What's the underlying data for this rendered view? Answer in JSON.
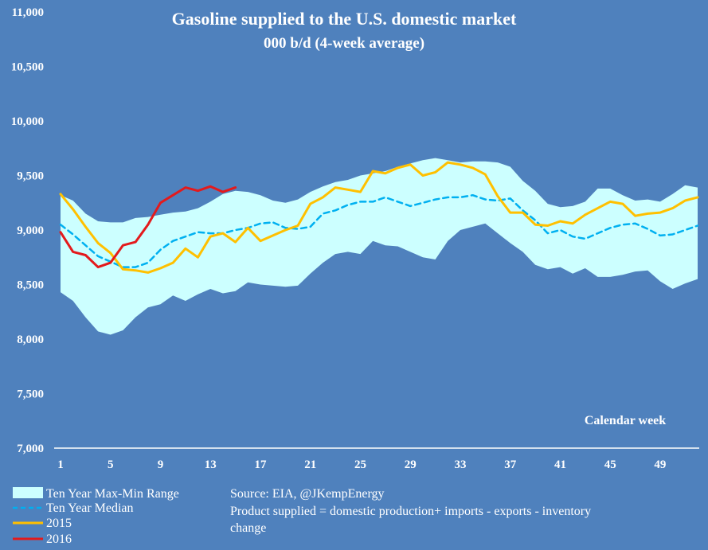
{
  "chart_data": {
    "type": "line",
    "title": "Gasoline supplied to the U.S. domestic market",
    "subtitle": "000 b/d (4-week average)",
    "xlabel": "Calendar week",
    "ylabel": "",
    "ylim": [
      7000,
      11000
    ],
    "xlim": [
      1,
      52
    ],
    "grid": false,
    "y_ticks": [
      "7,000",
      "7,500",
      "8,000",
      "8,500",
      "9,000",
      "9,500",
      "10,000",
      "10,500",
      "11,000"
    ],
    "y_tick_values": [
      7000,
      7500,
      8000,
      8500,
      9000,
      9500,
      10000,
      10500,
      11000
    ],
    "x_ticks": [
      "1",
      "5",
      "9",
      "13",
      "17",
      "21",
      "25",
      "29",
      "33",
      "37",
      "41",
      "45",
      "49"
    ],
    "x_tick_values": [
      1,
      5,
      9,
      13,
      17,
      21,
      25,
      29,
      33,
      37,
      41,
      45,
      49
    ],
    "legend_position": "bottom-left",
    "weeks": [
      1,
      2,
      3,
      4,
      5,
      6,
      7,
      8,
      9,
      10,
      11,
      12,
      13,
      14,
      15,
      16,
      17,
      18,
      19,
      20,
      21,
      22,
      23,
      24,
      25,
      26,
      27,
      28,
      29,
      30,
      31,
      32,
      33,
      34,
      35,
      36,
      37,
      38,
      39,
      40,
      41,
      42,
      43,
      44,
      45,
      46,
      47,
      48,
      49,
      50,
      51,
      52
    ],
    "range_max": [
      9320,
      9270,
      9150,
      9080,
      9070,
      9070,
      9110,
      9120,
      9140,
      9160,
      9170,
      9200,
      9260,
      9330,
      9360,
      9350,
      9320,
      9270,
      9250,
      9280,
      9350,
      9400,
      9440,
      9460,
      9500,
      9520,
      9540,
      9580,
      9610,
      9640,
      9660,
      9640,
      9620,
      9630,
      9630,
      9620,
      9580,
      9450,
      9360,
      9240,
      9210,
      9220,
      9260,
      9380,
      9380,
      9320,
      9270,
      9280,
      9260,
      9330,
      9410,
      9390
    ],
    "range_min": [
      8430,
      8350,
      8200,
      8070,
      8040,
      8080,
      8200,
      8290,
      8320,
      8400,
      8350,
      8410,
      8460,
      8420,
      8440,
      8520,
      8500,
      8490,
      8480,
      8490,
      8600,
      8700,
      8780,
      8800,
      8780,
      8900,
      8860,
      8850,
      8800,
      8750,
      8730,
      8900,
      9000,
      9030,
      9060,
      8970,
      8880,
      8800,
      8680,
      8640,
      8660,
      8600,
      8650,
      8570,
      8570,
      8590,
      8620,
      8630,
      8530,
      8460,
      8510,
      8550
    ],
    "series": [
      {
        "name": "Ten Year Median",
        "color": "#00b0f0",
        "style": "dashed",
        "values": [
          9050,
          8960,
          8860,
          8760,
          8710,
          8660,
          8660,
          8700,
          8820,
          8900,
          8940,
          8980,
          8970,
          8970,
          9000,
          9020,
          9060,
          9070,
          9020,
          9010,
          9030,
          9150,
          9180,
          9230,
          9260,
          9260,
          9300,
          9260,
          9220,
          9250,
          9280,
          9300,
          9300,
          9320,
          9280,
          9270,
          9290,
          9180,
          9090,
          8970,
          9000,
          8940,
          8920,
          8970,
          9020,
          9050,
          9060,
          9010,
          8950,
          8960,
          9000,
          9040
        ]
      },
      {
        "name": "2015",
        "color": "#ffc000",
        "style": "solid",
        "values": [
          9330,
          9190,
          9030,
          8880,
          8790,
          8640,
          8630,
          8610,
          8650,
          8700,
          8830,
          8750,
          8940,
          8970,
          8890,
          9020,
          8900,
          8950,
          9000,
          9040,
          9240,
          9300,
          9390,
          9370,
          9350,
          9540,
          9520,
          9570,
          9600,
          9500,
          9530,
          9620,
          9600,
          9570,
          9510,
          9310,
          9160,
          9160,
          9050,
          9040,
          9080,
          9060,
          9140,
          9200,
          9260,
          9240,
          9130,
          9150,
          9160,
          9200,
          9270,
          9300
        ]
      },
      {
        "name": "2016",
        "color": "#e31a1c",
        "style": "solid",
        "values": [
          8980,
          8800,
          8770,
          8660,
          8700,
          8860,
          8890,
          9050,
          9250,
          9320,
          9390,
          9360,
          9400,
          9350,
          9390
        ]
      }
    ],
    "legend": {
      "range_label": "Ten Year Max-Min Range",
      "median_label": "Ten Year Median",
      "y2015_label": "2015",
      "y2016_label": "2016"
    },
    "notes": {
      "source": "Source: EIA, @JKempEnergy",
      "definition_line1": "Product supplied = domestic production+ imports - exports - inventory",
      "definition_line2": "change"
    },
    "colors": {
      "background": "#4f81bd",
      "range_fill": "#ccffff",
      "axis": "#ffffff"
    }
  }
}
